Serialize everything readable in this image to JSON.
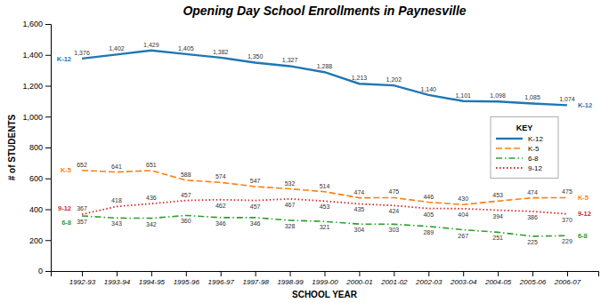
{
  "chart_data": {
    "type": "line",
    "title": "Opening Day School Enrollments in Paynesville",
    "xlabel": "SCHOOL YEAR",
    "ylabel": "# of STUDENTS",
    "categories": [
      "1992-93",
      "1993-94",
      "1994-95",
      "1995-96",
      "1996-97",
      "1997-98",
      "1998-99",
      "1999-00",
      "2000-01",
      "2001-02",
      "2002-03",
      "2003-04",
      "2004-05",
      "2005-06",
      "2006-07"
    ],
    "series": [
      {
        "name": "K-12",
        "line_style": "solid",
        "values": [
          1376,
          1402,
          1429,
          1405,
          1382,
          1350,
          1327,
          1288,
          1213,
          1202,
          1140,
          1101,
          1098,
          1085,
          1074
        ],
        "value_labels": [
          "1,376",
          "1,402",
          "1,429",
          "1,405",
          "1,382",
          "1,350",
          "1,327",
          "1,288",
          "1,213",
          "1,202",
          "1,140",
          "1,101",
          "1,098",
          "1,085",
          "1,074"
        ]
      },
      {
        "name": "K-5",
        "line_style": "dashed",
        "values": [
          652,
          641,
          651,
          588,
          574,
          547,
          532,
          514,
          474,
          475,
          446,
          430,
          453,
          474,
          475
        ]
      },
      {
        "name": "6-8",
        "line_style": "dashdot",
        "values": [
          357,
          343,
          342,
          360,
          346,
          346,
          328,
          321,
          304,
          303,
          289,
          267,
          251,
          225,
          229
        ]
      },
      {
        "name": "9-12",
        "line_style": "dotted",
        "values": [
          367,
          418,
          436,
          457,
          462,
          457,
          467,
          453,
          435,
          424,
          405,
          404,
          394,
          386,
          370
        ]
      }
    ],
    "ylim": [
      0,
      1600
    ],
    "yticks": [
      0,
      200,
      400,
      600,
      800,
      {
        "value": 1000,
        "label": "1,000"
      },
      {
        "value": 1200,
        "label": "1,200"
      },
      {
        "value": 1400,
        "label": "1,400"
      },
      {
        "value": 1600,
        "label": "1,600"
      }
    ],
    "grid": false,
    "data_labels": true,
    "legend": "right",
    "legend_title": "KEY"
  }
}
